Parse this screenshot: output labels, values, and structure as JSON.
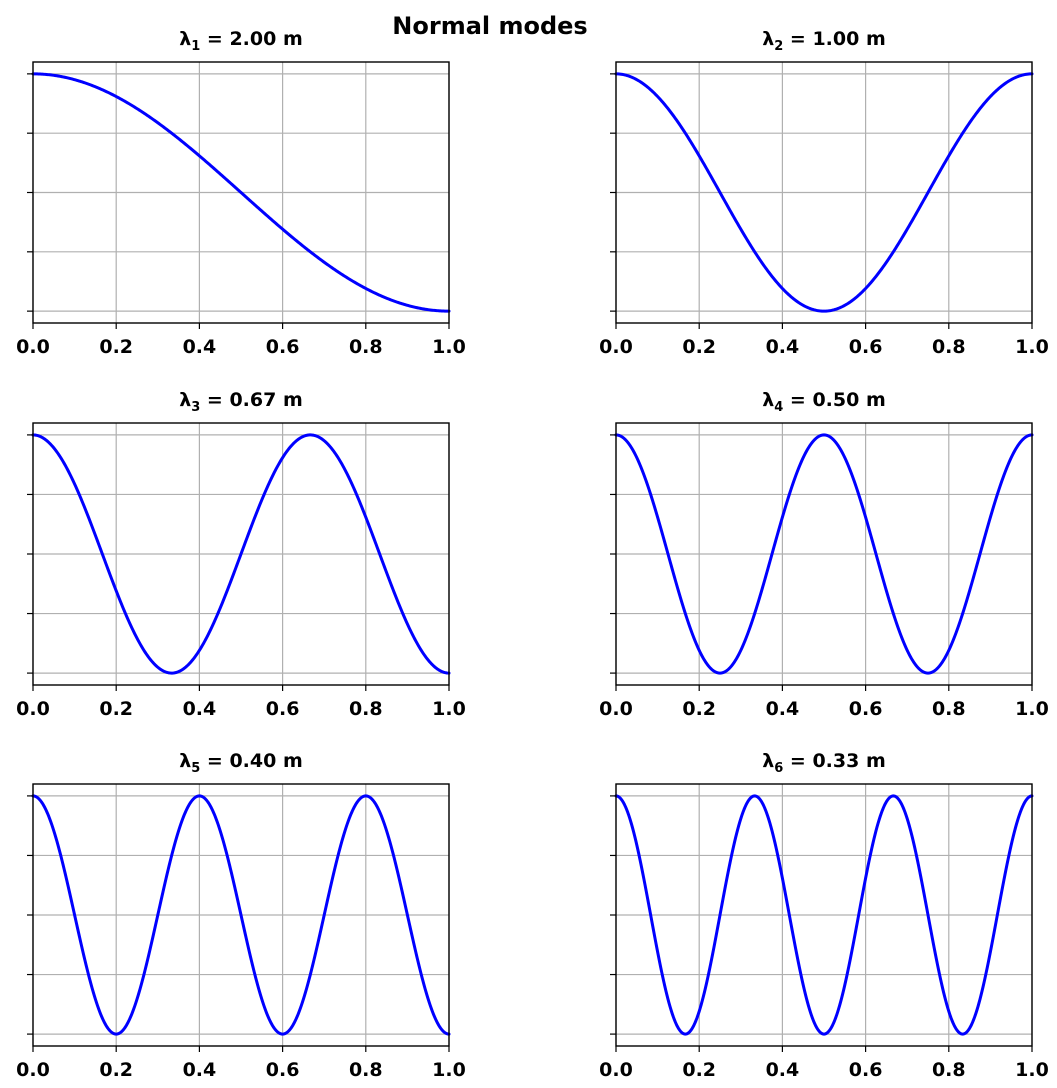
{
  "figure": {
    "suptitle": "Normal modes"
  },
  "chart_data": [
    {
      "type": "line",
      "title": "λ1 = 2.00 m",
      "title_parts": {
        "symbol": "λ",
        "sub": "1",
        "rest": " = 2.00 m"
      },
      "mode": 1,
      "function": "cos(1·π·x)",
      "x": [
        0,
        0.1,
        0.2,
        0.3,
        0.4,
        0.5,
        0.6,
        0.7,
        0.8,
        0.9,
        1.0
      ],
      "values": [
        1,
        0.951,
        0.809,
        0.588,
        0.309,
        0,
        -0.309,
        -0.588,
        -0.809,
        -0.951,
        -1
      ],
      "xlabel": "",
      "ylabel": "",
      "xlim": [
        0,
        1
      ],
      "ylim": [
        -1.1,
        1.1
      ],
      "xticks": [
        "0.0",
        "0.2",
        "0.4",
        "0.6",
        "0.8",
        "1.0"
      ],
      "yticks": [
        -1,
        -0.5,
        0,
        0.5,
        1
      ],
      "ytick_labels_shown": false,
      "grid": true,
      "color": "#0000ff"
    },
    {
      "type": "line",
      "title": "λ2 = 1.00 m",
      "title_parts": {
        "symbol": "λ",
        "sub": "2",
        "rest": " = 1.00 m"
      },
      "mode": 2,
      "function": "cos(2·π·x)",
      "x": [
        0,
        0.1,
        0.2,
        0.3,
        0.4,
        0.5,
        0.6,
        0.7,
        0.8,
        0.9,
        1.0
      ],
      "values": [
        1,
        0.809,
        0.309,
        -0.309,
        -0.809,
        -1,
        -0.809,
        -0.309,
        0.309,
        0.809,
        1
      ],
      "xlabel": "",
      "ylabel": "",
      "xlim": [
        0,
        1
      ],
      "ylim": [
        -1.1,
        1.1
      ],
      "xticks": [
        "0.0",
        "0.2",
        "0.4",
        "0.6",
        "0.8",
        "1.0"
      ],
      "yticks": [
        -1,
        -0.5,
        0,
        0.5,
        1
      ],
      "ytick_labels_shown": false,
      "grid": true,
      "color": "#0000ff"
    },
    {
      "type": "line",
      "title": "λ3 = 0.67 m",
      "title_parts": {
        "symbol": "λ",
        "sub": "3",
        "rest": " = 0.67 m"
      },
      "mode": 3,
      "function": "cos(3·π·x)",
      "x": [
        0,
        0.1,
        0.2,
        0.3,
        0.4,
        0.5,
        0.6,
        0.7,
        0.8,
        0.9,
        1.0
      ],
      "values": [
        1,
        0.588,
        -0.309,
        -0.951,
        -0.809,
        0,
        0.809,
        0.951,
        0.309,
        -0.588,
        -1
      ],
      "xlabel": "",
      "ylabel": "",
      "xlim": [
        0,
        1
      ],
      "ylim": [
        -1.1,
        1.1
      ],
      "xticks": [
        "0.0",
        "0.2",
        "0.4",
        "0.6",
        "0.8",
        "1.0"
      ],
      "yticks": [
        -1,
        -0.5,
        0,
        0.5,
        1
      ],
      "ytick_labels_shown": false,
      "grid": true,
      "color": "#0000ff"
    },
    {
      "type": "line",
      "title": "λ4 = 0.50 m",
      "title_parts": {
        "symbol": "λ",
        "sub": "4",
        "rest": " = 0.50 m"
      },
      "mode": 4,
      "function": "cos(4·π·x)",
      "x": [
        0,
        0.1,
        0.2,
        0.3,
        0.4,
        0.5,
        0.6,
        0.7,
        0.8,
        0.9,
        1.0
      ],
      "values": [
        1,
        0.309,
        -0.809,
        -0.809,
        0.309,
        1,
        0.309,
        -0.809,
        -0.809,
        0.309,
        1
      ],
      "xlabel": "",
      "ylabel": "",
      "xlim": [
        0,
        1
      ],
      "ylim": [
        -1.1,
        1.1
      ],
      "xticks": [
        "0.0",
        "0.2",
        "0.4",
        "0.6",
        "0.8",
        "1.0"
      ],
      "yticks": [
        -1,
        -0.5,
        0,
        0.5,
        1
      ],
      "ytick_labels_shown": false,
      "grid": true,
      "color": "#0000ff"
    },
    {
      "type": "line",
      "title": "λ5 = 0.40 m",
      "title_parts": {
        "symbol": "λ",
        "sub": "5",
        "rest": " = 0.40 m"
      },
      "mode": 5,
      "function": "cos(5·π·x)",
      "x": [
        0,
        0.1,
        0.2,
        0.3,
        0.4,
        0.5,
        0.6,
        0.7,
        0.8,
        0.9,
        1.0
      ],
      "values": [
        1,
        0,
        -1,
        0,
        1,
        0,
        -1,
        0,
        1,
        0,
        -1
      ],
      "xlabel": "",
      "ylabel": "",
      "xlim": [
        0,
        1
      ],
      "ylim": [
        -1.1,
        1.1
      ],
      "xticks": [
        "0.0",
        "0.2",
        "0.4",
        "0.6",
        "0.8",
        "1.0"
      ],
      "yticks": [
        -1,
        -0.5,
        0,
        0.5,
        1
      ],
      "ytick_labels_shown": false,
      "grid": true,
      "color": "#0000ff"
    },
    {
      "type": "line",
      "title": "λ6 = 0.33 m",
      "title_parts": {
        "symbol": "λ",
        "sub": "6",
        "rest": " = 0.33 m"
      },
      "mode": 6,
      "function": "cos(6·π·x)",
      "x": [
        0,
        0.1,
        0.2,
        0.3,
        0.4,
        0.5,
        0.6,
        0.7,
        0.8,
        0.9,
        1.0
      ],
      "values": [
        1,
        -0.309,
        -0.809,
        0.809,
        0.309,
        -1,
        0.309,
        0.809,
        -0.809,
        -0.309,
        1
      ],
      "xlabel": "",
      "ylabel": "",
      "xlim": [
        0,
        1
      ],
      "ylim": [
        -1.1,
        1.1
      ],
      "xticks": [
        "0.0",
        "0.2",
        "0.4",
        "0.6",
        "0.8",
        "1.0"
      ],
      "yticks": [
        -1,
        -0.5,
        0,
        0.5,
        1
      ],
      "ytick_labels_shown": false,
      "grid": true,
      "color": "#0000ff"
    }
  ]
}
